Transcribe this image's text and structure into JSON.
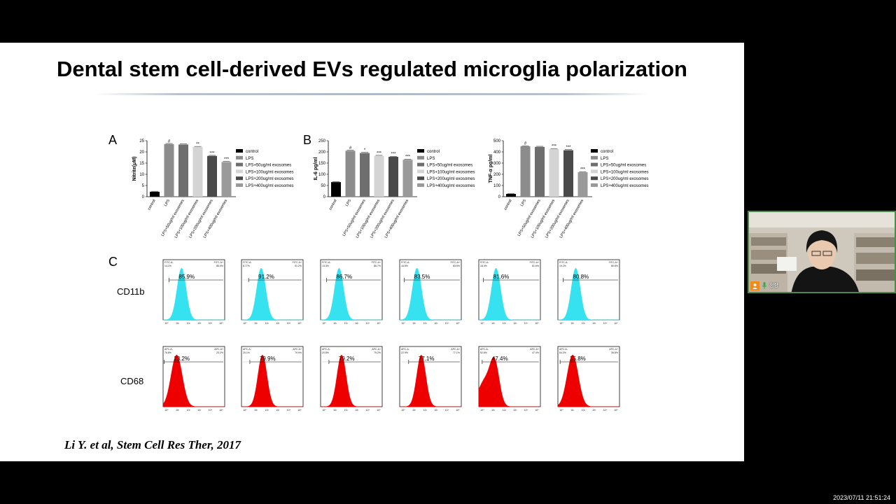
{
  "slide": {
    "title": "Dental stem cell-derived EVs regulated microglia polarization",
    "citation": "Li Y. et al, Stem Cell Res Ther, 2017",
    "panel_labels": [
      "A",
      "B",
      "C"
    ],
    "row_labels": [
      "CD11b",
      "CD68"
    ]
  },
  "webcam": {
    "name": "정향"
  },
  "timestamp": "2023/07/11 21:51:24",
  "colors": {
    "bar_control": "#000000",
    "bar_lps": "#8c8c8c",
    "bar_50": "#6e6e6e",
    "bar_100": "#d4d4d4",
    "bar_200": "#4a4a4a",
    "bar_400": "#9a9a9a",
    "hist_cd11b": "#36e2f0",
    "hist_cd68": "#ee0000"
  },
  "chart_data": [
    {
      "type": "bar",
      "ylabel": "Nitrite(μM)",
      "ylim": [
        0,
        25
      ],
      "yticks": [
        "0",
        "5",
        "10",
        "15",
        "20",
        "25"
      ],
      "categories": [
        "control",
        "LPS",
        "LPS+50ug/ml exosomes",
        "LPS+100ug/ml exosomes",
        "LPS+200ug/ml exosomes",
        "LPS+400ug/ml exosomes"
      ],
      "values": [
        2.2,
        23.5,
        23.3,
        22.2,
        18.2,
        15.5
      ],
      "significance": [
        "",
        "#",
        "",
        "**",
        "***",
        "***"
      ],
      "legend": [
        "control",
        "LPS",
        "LPS+50ug/ml exosomes",
        "LPS+100ug/ml exosomes",
        "LPS+200ug/ml exosomes",
        "LPS+400ug/ml exosomes"
      ]
    },
    {
      "type": "bar",
      "ylabel": "IL-6 pg/ml",
      "ylim": [
        0,
        250
      ],
      "yticks": [
        "0",
        "50",
        "100",
        "150",
        "200",
        "250"
      ],
      "categories": [
        "control",
        "LPS",
        "LPS+50ug/ml exosomes",
        "LPS+100ug/ml exosomes",
        "LPS+200ug/ml exosomes",
        "LPS+400ug/ml exosomes"
      ],
      "values": [
        65,
        205,
        195,
        182,
        178,
        165
      ],
      "significance": [
        "",
        "#",
        "*",
        "***",
        "***",
        "***"
      ],
      "legend": [
        "control",
        "LPS",
        "LPS+50ug/ml exosomes",
        "LPS+100ug/ml exosomes",
        "LPS+200ug/ml exosomes",
        "LPS+400ug/ml exosomes"
      ]
    },
    {
      "type": "bar",
      "ylabel": "TNF-α pg/ml",
      "ylim": [
        0,
        500
      ],
      "yticks": [
        "0",
        "100",
        "200",
        "300",
        "400",
        "500"
      ],
      "categories": [
        "control",
        "LPS",
        "LPS+50ug/ml exosomes",
        "LPS+100ug/ml exosomes",
        "LPS+200ug/ml exosomes",
        "LPS+400ug/ml exosomes"
      ],
      "values": [
        25,
        450,
        445,
        425,
        415,
        218
      ],
      "significance": [
        "",
        "#",
        "",
        "***",
        "***",
        "***"
      ],
      "legend": [
        "control",
        "LPS",
        "LPS+50ug/ml exosomes",
        "LPS+100ug/ml exosomes",
        "LPS+200ug/ml exosomes",
        "LPS+400ug/ml exosomes"
      ]
    },
    {
      "type": "area",
      "row": "CD11b",
      "gate_labels": [
        "FITC-A-",
        "FITC-A+"
      ],
      "percentages": [
        "85.9%",
        "91.2%",
        "86.7%",
        "83.5%",
        "81.6%",
        "80.8%"
      ],
      "corner_values": [
        [
          "14.1%",
          "85.9%"
        ],
        [
          "8.77%",
          "91.2%"
        ],
        [
          "13.3%",
          "86.7%"
        ],
        [
          "16.5%",
          "83.5%"
        ],
        [
          "18.4%",
          "81.6%"
        ],
        [
          "19.2%",
          "80.8%"
        ]
      ],
      "y_max": [
        250,
        250,
        250,
        250,
        250,
        250
      ],
      "peak_log": [
        1.5,
        1.6,
        1.5,
        1.4,
        1.4,
        1.45
      ]
    },
    {
      "type": "area",
      "row": "CD68",
      "gate_labels": [
        "APC-A-",
        "APC-A+"
      ],
      "percentages": [
        "23.2%",
        "79.9%",
        "79.2%",
        "77.1%",
        "47.4%",
        "35.8%"
      ],
      "corner_values": [
        [
          "76.8%",
          "23.2%"
        ],
        [
          "20.1%",
          "79.9%"
        ],
        [
          "20.8%",
          "79.2%"
        ],
        [
          "22.9%",
          "77.1%"
        ],
        [
          "52.6%",
          "47.4%"
        ],
        [
          "64.2%",
          "35.8%"
        ]
      ],
      "y_max": [
        150,
        150,
        150,
        150,
        150,
        150
      ],
      "peak_log": [
        1.1,
        1.7,
        1.7,
        1.75,
        1.3,
        1.2
      ]
    }
  ]
}
